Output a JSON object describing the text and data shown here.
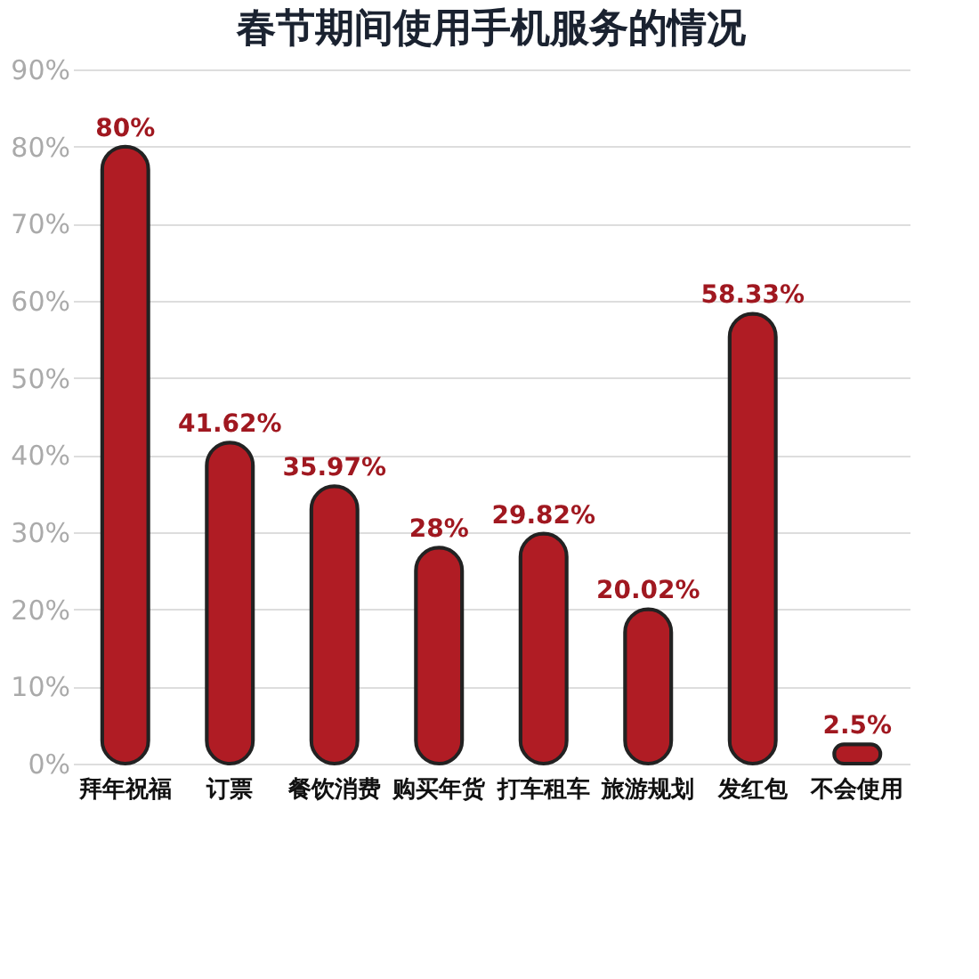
{
  "chart_data": {
    "type": "bar",
    "title": "春节期间使用手机服务的情况",
    "categories": [
      "拜年祝福",
      "订票",
      "餐饮消费",
      "购买年货",
      "打车租车",
      "旅游规划",
      "发红包",
      "不会使用"
    ],
    "values": [
      80,
      41.62,
      35.97,
      28,
      29.82,
      20.02,
      58.33,
      2.5
    ],
    "value_labels": [
      "80%",
      "41.62%",
      "35.97%",
      "28%",
      "29.82%",
      "20.02%",
      "58.33%",
      "2.5%"
    ],
    "color": "#b01c24",
    "ylim": [
      0,
      90
    ],
    "yticks": [
      {
        "value": 0,
        "label": "0%"
      },
      {
        "value": 10,
        "label": "10%"
      },
      {
        "value": 20,
        "label": "20%"
      },
      {
        "value": 30,
        "label": "30%"
      },
      {
        "value": 40,
        "label": "40%"
      },
      {
        "value": 50,
        "label": "50%"
      },
      {
        "value": 60,
        "label": "60%"
      },
      {
        "value": 70,
        "label": "70%"
      },
      {
        "value": 80,
        "label": "80%"
      },
      {
        "value": 90,
        "label": "90%"
      }
    ],
    "grid": "y"
  }
}
